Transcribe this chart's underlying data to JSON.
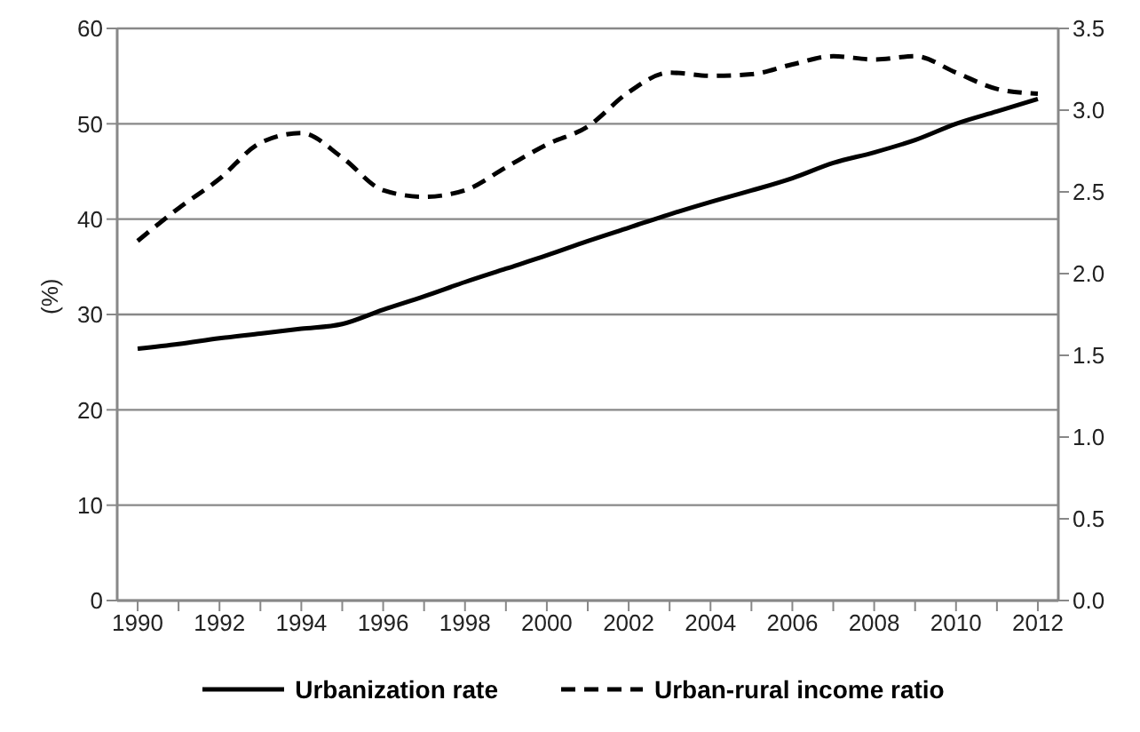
{
  "chart_data": {
    "type": "line",
    "ylabel": "(%)",
    "categories": [
      "1990",
      null,
      "1992",
      null,
      "1994",
      null,
      "1996",
      null,
      "1998",
      null,
      "2000",
      null,
      "2002",
      null,
      "2004",
      null,
      "2006",
      null,
      "2008",
      null,
      "2010",
      null,
      "2012"
    ],
    "series": [
      {
        "name": "Urbanization rate",
        "color": "#000000",
        "line_style": "solid",
        "values": [
          26.4,
          26.9,
          27.5,
          28.0,
          28.5,
          29.0,
          30.5,
          31.9,
          33.4,
          34.8,
          36.2,
          37.7,
          39.1,
          40.5,
          41.8,
          43.0,
          44.3,
          45.9,
          47.0,
          48.3,
          50.0,
          51.3,
          52.6
        ]
      },
      {
        "name": "Urban-rural income ratio",
        "color": "#000000",
        "line_style": "dashed",
        "axis": "y2",
        "values": [
          2.2,
          2.4,
          2.58,
          2.8,
          2.86,
          2.71,
          2.51,
          2.47,
          2.51,
          2.65,
          2.79,
          2.9,
          3.11,
          3.23,
          3.21,
          3.22,
          3.28,
          3.33,
          3.31,
          3.33,
          3.23,
          3.13,
          3.1
        ]
      }
    ],
    "ylim": [
      0,
      60
    ],
    "yticks": [
      0,
      10,
      20,
      30,
      40,
      50,
      60
    ],
    "y2lim": [
      0,
      3.5
    ],
    "y2ticks": [
      {
        "value": 0,
        "label": "0.0"
      },
      {
        "value": 0.5,
        "label": "0.5"
      },
      {
        "value": 1,
        "label": "1.0"
      },
      {
        "value": 1.5,
        "label": "1.5"
      },
      {
        "value": 2,
        "label": "2.0"
      },
      {
        "value": 2.5,
        "label": "2.5"
      },
      {
        "value": 3,
        "label": "3.0"
      },
      {
        "value": 3.5,
        "label": "3.5"
      }
    ],
    "grid": "y",
    "legend": "bottom",
    "marker": "none"
  }
}
